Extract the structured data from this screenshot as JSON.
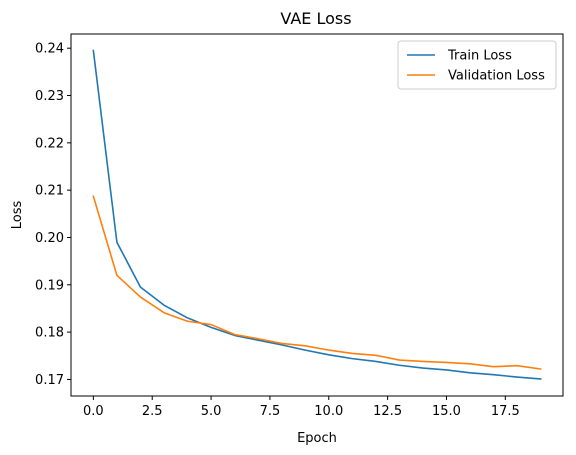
{
  "chart_data": {
    "type": "line",
    "title": "VAE Loss",
    "xlabel": "Epoch",
    "ylabel": "Loss",
    "xlim": [
      -0.95,
      19.95
    ],
    "ylim": [
      0.1665,
      0.243
    ],
    "xticks": [
      0.0,
      2.5,
      5.0,
      7.5,
      10.0,
      12.5,
      15.0,
      17.5
    ],
    "xtick_labels": [
      "0.0",
      "2.5",
      "5.0",
      "7.5",
      "10.0",
      "12.5",
      "15.0",
      "17.5"
    ],
    "yticks": [
      0.17,
      0.18,
      0.19,
      0.2,
      0.21,
      0.22,
      0.23,
      0.24
    ],
    "ytick_labels": [
      "0.17",
      "0.18",
      "0.19",
      "0.20",
      "0.21",
      "0.22",
      "0.23",
      "0.24"
    ],
    "grid": false,
    "legend_position": "top-right",
    "x": [
      0,
      1,
      2,
      3,
      4,
      5,
      6,
      7,
      8,
      9,
      10,
      11,
      12,
      13,
      14,
      15,
      16,
      17,
      18,
      19
    ],
    "series": [
      {
        "name": "Train Loss",
        "color": "#1f77b4",
        "values": [
          0.2395,
          0.199,
          0.1895,
          0.1857,
          0.183,
          0.181,
          0.1793,
          0.1783,
          0.1773,
          0.1762,
          0.1752,
          0.1744,
          0.1738,
          0.173,
          0.1724,
          0.172,
          0.1714,
          0.171,
          0.1705,
          0.1701
        ]
      },
      {
        "name": "Validation Loss",
        "color": "#ff7f0e",
        "values": [
          0.2087,
          0.192,
          0.1874,
          0.1841,
          0.1823,
          0.1816,
          0.1795,
          0.1786,
          0.1776,
          0.1771,
          0.1762,
          0.1755,
          0.1751,
          0.1741,
          0.1738,
          0.1736,
          0.1733,
          0.1727,
          0.1729,
          0.1722
        ]
      }
    ]
  }
}
